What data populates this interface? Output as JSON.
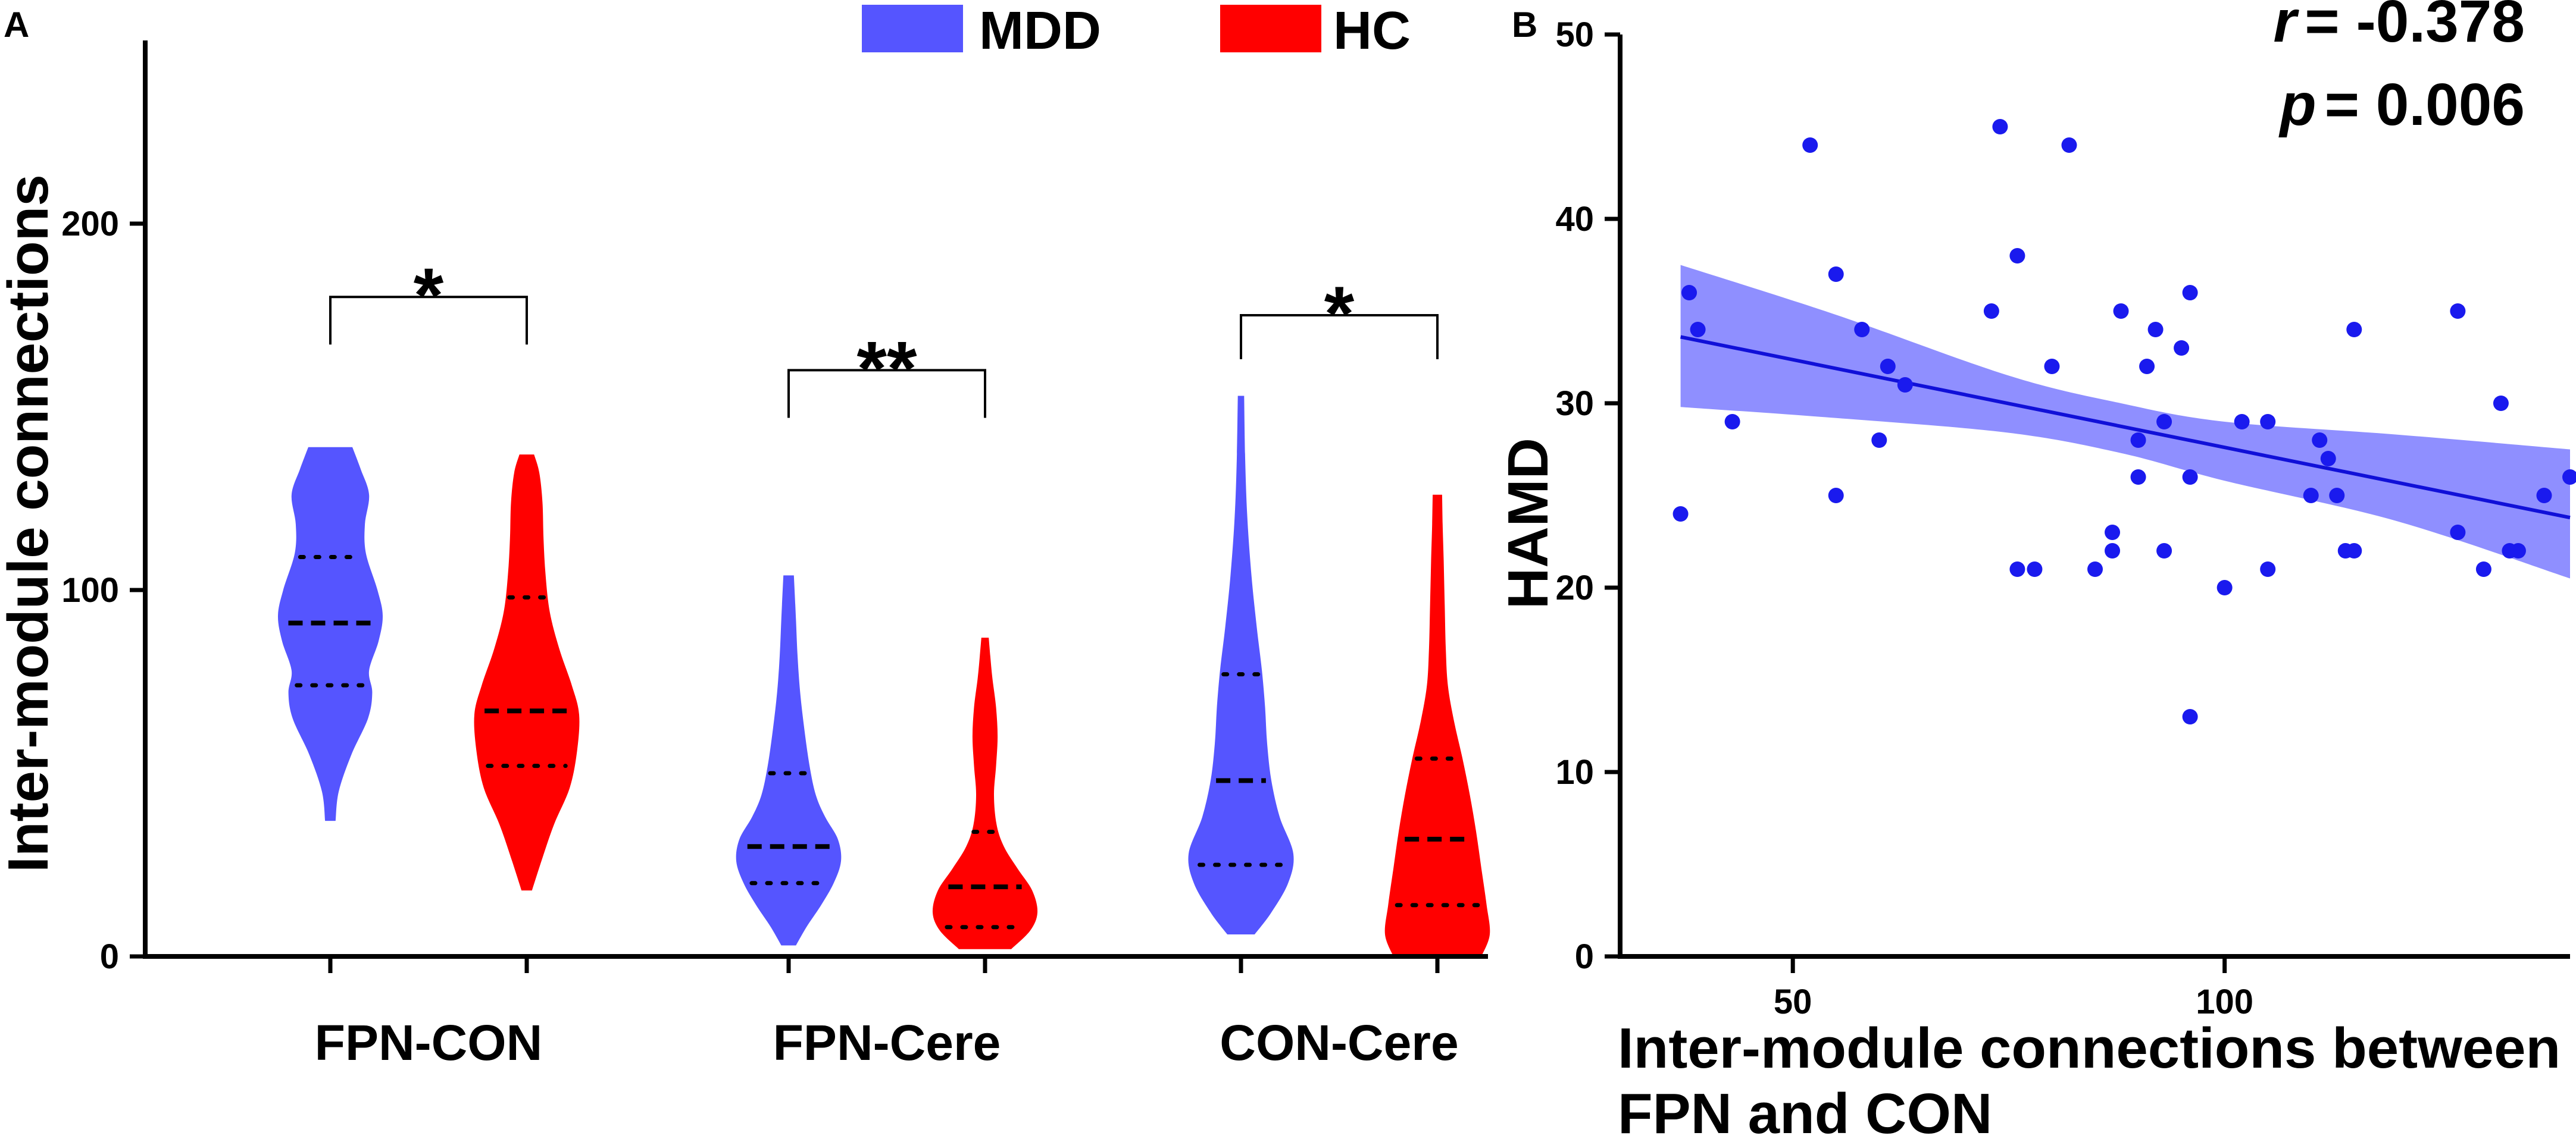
{
  "chart_data": [
    {
      "panel": "A",
      "type": "violin",
      "ylabel": "Inter-module connections",
      "ylim": [
        0,
        250
      ],
      "yticks": [
        0,
        100,
        200
      ],
      "categories": [
        "FPN-CON",
        "FPN-Cere",
        "CON-Cere"
      ],
      "legend": [
        {
          "name": "MDD",
          "color": "#5555ff"
        },
        {
          "name": "HC",
          "color": "#ff0000"
        }
      ],
      "series": [
        {
          "name": "MDD",
          "color": "#5555ff",
          "violins": [
            {
              "min": 37,
              "max": 139,
              "q1": 74,
              "median": 91,
              "q3": 109,
              "profile": [
                [
                  37,
                  0.1
                ],
                [
                  45,
                  0.16
                ],
                [
                  55,
                  0.4
                ],
                [
                  65,
                  0.72
                ],
                [
                  72,
                  0.8
                ],
                [
                  78,
                  0.74
                ],
                [
                  86,
                  0.92
                ],
                [
                  93,
                  1.0
                ],
                [
                  100,
                  0.9
                ],
                [
                  110,
                  0.68
                ],
                [
                  118,
                  0.66
                ],
                [
                  126,
                  0.74
                ],
                [
                  133,
                  0.58
                ],
                [
                  139,
                  0.42
                ]
              ]
            },
            {
              "min": 3,
              "max": 104,
              "q1": 20,
              "median": 30,
              "q3": 50,
              "profile": [
                [
                  3,
                  0.14
                ],
                [
                  8,
                  0.34
                ],
                [
                  14,
                  0.62
                ],
                [
                  20,
                  0.86
                ],
                [
                  26,
                  1.0
                ],
                [
                  32,
                  0.94
                ],
                [
                  38,
                  0.7
                ],
                [
                  44,
                  0.52
                ],
                [
                  52,
                  0.4
                ],
                [
                  62,
                  0.3
                ],
                [
                  72,
                  0.22
                ],
                [
                  82,
                  0.17
                ],
                [
                  92,
                  0.14
                ],
                [
                  104,
                  0.1
                ]
              ]
            },
            {
              "min": 6,
              "max": 153,
              "q1": 25,
              "median": 48,
              "q3": 77,
              "profile": [
                [
                  6,
                  0.26
                ],
                [
                  12,
                  0.58
                ],
                [
                  20,
                  0.9
                ],
                [
                  28,
                  1.0
                ],
                [
                  38,
                  0.74
                ],
                [
                  48,
                  0.58
                ],
                [
                  58,
                  0.5
                ],
                [
                  68,
                  0.46
                ],
                [
                  78,
                  0.4
                ],
                [
                  90,
                  0.3
                ],
                [
                  104,
                  0.2
                ],
                [
                  120,
                  0.12
                ],
                [
                  136,
                  0.08
                ],
                [
                  153,
                  0.06
                ]
              ]
            }
          ]
        },
        {
          "name": "HC",
          "color": "#ff0000",
          "violins": [
            {
              "min": 18,
              "max": 137,
              "q1": 52,
              "median": 67,
              "q3": 98,
              "profile": [
                [
                  18,
                  0.1
                ],
                [
                  26,
                  0.28
                ],
                [
                  36,
                  0.52
                ],
                [
                  46,
                  0.82
                ],
                [
                  56,
                  0.96
                ],
                [
                  66,
                  1.0
                ],
                [
                  74,
                  0.86
                ],
                [
                  84,
                  0.62
                ],
                [
                  94,
                  0.44
                ],
                [
                  104,
                  0.36
                ],
                [
                  114,
                  0.32
                ],
                [
                  124,
                  0.3
                ],
                [
                  132,
                  0.24
                ],
                [
                  137,
                  0.14
                ]
              ]
            },
            {
              "min": 2,
              "max": 87,
              "q1": 8,
              "median": 19,
              "q3": 34,
              "profile": [
                [
                  2,
                  0.5
                ],
                [
                  7,
                  0.86
                ],
                [
                  12,
                  1.0
                ],
                [
                  18,
                  0.9
                ],
                [
                  24,
                  0.62
                ],
                [
                  30,
                  0.36
                ],
                [
                  36,
                  0.22
                ],
                [
                  44,
                  0.17
                ],
                [
                  52,
                  0.21
                ],
                [
                  60,
                  0.24
                ],
                [
                  68,
                  0.21
                ],
                [
                  76,
                  0.14
                ],
                [
                  82,
                  0.1
                ],
                [
                  87,
                  0.07
                ]
              ]
            },
            {
              "min": 0,
              "max": 126,
              "q1": 14,
              "median": 32,
              "q3": 54,
              "profile": [
                [
                  0,
                  0.84
                ],
                [
                  6,
                  1.0
                ],
                [
                  14,
                  0.94
                ],
                [
                  24,
                  0.84
                ],
                [
                  34,
                  0.74
                ],
                [
                  44,
                  0.62
                ],
                [
                  54,
                  0.48
                ],
                [
                  64,
                  0.32
                ],
                [
                  74,
                  0.2
                ],
                [
                  84,
                  0.16
                ],
                [
                  96,
                  0.14
                ],
                [
                  108,
                  0.12
                ],
                [
                  118,
                  0.1
                ],
                [
                  126,
                  0.09
                ]
              ]
            }
          ]
        }
      ],
      "significance": [
        {
          "category": "FPN-CON",
          "label": "*",
          "bracket_y": 180,
          "drop_to": 167
        },
        {
          "category": "FPN-Cere",
          "label": "**",
          "bracket_y": 160,
          "drop_to": 147
        },
        {
          "category": "CON-Cere",
          "label": "*",
          "bracket_y": 175,
          "drop_to": 163
        }
      ]
    },
    {
      "panel": "B",
      "type": "scatter",
      "xlabel_lines": [
        "Inter-module connections between",
        "FPN and CON"
      ],
      "ylabel": "HAMD",
      "xlim": [
        30,
        140
      ],
      "ylim": [
        0,
        50
      ],
      "xticks": [
        50,
        100
      ],
      "yticks": [
        0,
        10,
        20,
        30,
        40,
        50
      ],
      "color": "#1a1aee",
      "band_color": "#7b7bff",
      "r_label": "r",
      "r_value": "= -0.378",
      "p_label": "p",
      "p_value": "= 0.006",
      "fit": {
        "x": [
          37,
          140
        ],
        "y": [
          33.6,
          23.8
        ]
      },
      "band": {
        "x": [
          37,
          55,
          75,
          88,
          100,
          120,
          140
        ],
        "lower": [
          29.8,
          29.2,
          28.4,
          27.3,
          25.8,
          23.6,
          20.5
        ],
        "upper": [
          37.5,
          34.8,
          31.5,
          30.0,
          29.0,
          28.3,
          27.5
        ]
      },
      "points": [
        [
          37,
          24
        ],
        [
          38,
          36
        ],
        [
          39,
          34
        ],
        [
          43,
          29
        ],
        [
          52,
          44
        ],
        [
          55,
          37
        ],
        [
          55,
          25
        ],
        [
          58,
          34
        ],
        [
          60,
          28
        ],
        [
          61,
          32
        ],
        [
          63,
          31
        ],
        [
          73,
          35
        ],
        [
          74,
          45
        ],
        [
          76,
          38
        ],
        [
          76,
          21
        ],
        [
          78,
          21
        ],
        [
          80,
          32
        ],
        [
          82,
          44
        ],
        [
          85,
          21
        ],
        [
          87,
          22
        ],
        [
          87,
          23
        ],
        [
          88,
          35
        ],
        [
          90,
          26
        ],
        [
          90,
          28
        ],
        [
          91,
          32
        ],
        [
          92,
          34
        ],
        [
          93,
          29
        ],
        [
          93,
          22
        ],
        [
          95,
          33
        ],
        [
          96,
          36
        ],
        [
          96,
          26
        ],
        [
          96,
          13
        ],
        [
          100,
          20
        ],
        [
          102,
          29
        ],
        [
          105,
          29
        ],
        [
          105,
          21
        ],
        [
          110,
          25
        ],
        [
          111,
          28
        ],
        [
          112,
          27
        ],
        [
          113,
          25
        ],
        [
          114,
          22
        ],
        [
          115,
          22
        ],
        [
          115,
          34
        ],
        [
          127,
          35
        ],
        [
          127,
          23
        ],
        [
          130,
          21
        ],
        [
          132,
          30
        ],
        [
          133,
          22
        ],
        [
          134,
          22
        ],
        [
          137,
          25
        ],
        [
          140,
          26
        ]
      ]
    }
  ]
}
